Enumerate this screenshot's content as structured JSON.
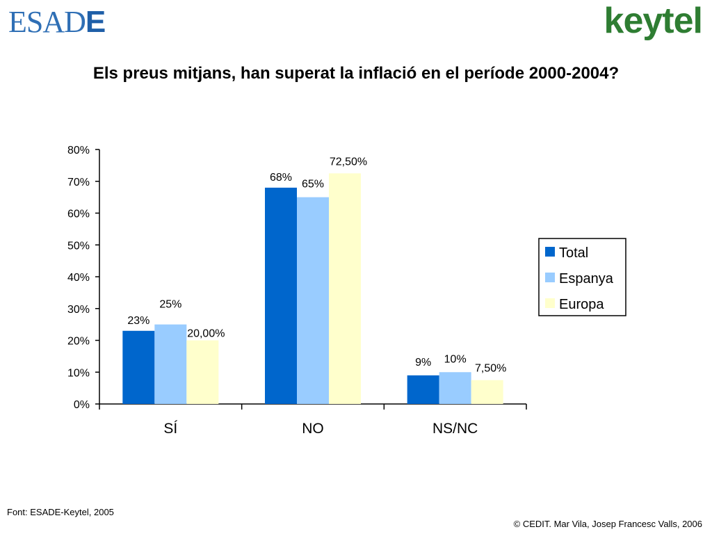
{
  "header": {
    "logo_left_main": "ESAD",
    "logo_left_bold": "E",
    "logo_right": "keytel"
  },
  "title": "Els preus mitjans, han superat la inflació en el període 2000-2004?",
  "footer": {
    "source": "Font: ESADE-Keytel, 2005",
    "copyright": "© CEDIT. Mar Vila, Josep Francesc Valls, 2006"
  },
  "chart_data": {
    "type": "bar",
    "categories": [
      "SÍ",
      "NO",
      "NS/NC"
    ],
    "series": [
      {
        "name": "Total",
        "color": "#0066cc",
        "values": [
          23,
          68,
          9
        ],
        "labels": [
          "23%",
          "68%",
          "9%"
        ]
      },
      {
        "name": "Espanya",
        "color": "#99ccff",
        "values": [
          25,
          65,
          10
        ],
        "labels": [
          "25%",
          "65%",
          "10%"
        ]
      },
      {
        "name": "Europa",
        "color": "#ffffcc",
        "values": [
          20,
          72.5,
          7.5
        ],
        "labels": [
          "20,00%",
          "72,50%",
          "7,50%"
        ]
      }
    ],
    "ylim": [
      0,
      80
    ],
    "yticks": [
      "0%",
      "10%",
      "20%",
      "30%",
      "40%",
      "50%",
      "60%",
      "70%",
      "80%"
    ],
    "legend": "right",
    "grid": false
  }
}
